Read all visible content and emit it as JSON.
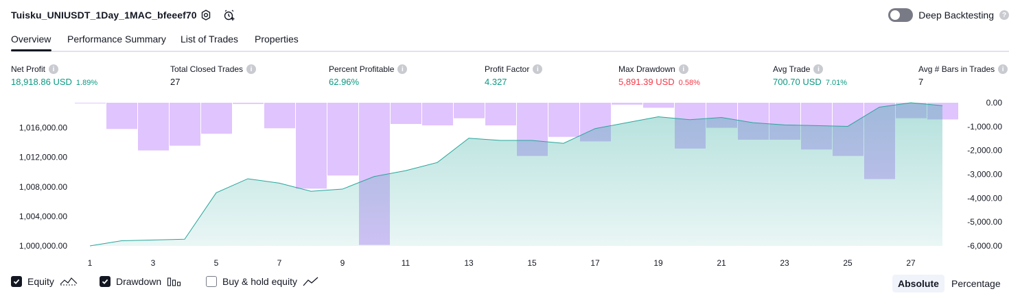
{
  "header": {
    "title": "Tuisku_UNIUSDT_1Day_1MAC_bfeeef70",
    "deep_backtesting_label": "Deep Backtesting",
    "deep_backtesting_enabled": false
  },
  "tabs": [
    {
      "label": "Overview",
      "active": true
    },
    {
      "label": "Performance Summary",
      "active": false
    },
    {
      "label": "List of Trades",
      "active": false
    },
    {
      "label": "Properties",
      "active": false
    }
  ],
  "stats": [
    {
      "label": "Net Profit",
      "value": "18,918.86 USD",
      "pct": "1.89%",
      "color": "#089981"
    },
    {
      "label": "Total Closed Trades",
      "value": "27",
      "pct": "",
      "color": "#131722"
    },
    {
      "label": "Percent Profitable",
      "value": "62.96%",
      "pct": "",
      "color": "#089981"
    },
    {
      "label": "Profit Factor",
      "value": "4.327",
      "pct": "",
      "color": "#089981"
    },
    {
      "label": "Max Drawdown",
      "value": "5,891.39 USD",
      "pct": "0.58%",
      "color": "#f23645"
    },
    {
      "label": "Avg Trade",
      "value": "700.70 USD",
      "pct": "7.01%",
      "color": "#089981"
    },
    {
      "label": "Avg # Bars in Trades",
      "value": "7",
      "pct": "",
      "color": "#131722"
    }
  ],
  "chart_data": {
    "type": "area",
    "x": [
      1,
      2,
      3,
      4,
      5,
      6,
      7,
      8,
      9,
      10,
      11,
      12,
      13,
      14,
      15,
      16,
      17,
      18,
      19,
      20,
      21,
      22,
      23,
      24,
      25,
      26,
      27,
      28
    ],
    "x_tick_labels": [
      "1",
      "3",
      "5",
      "7",
      "9",
      "11",
      "13",
      "15",
      "17",
      "19",
      "21",
      "23",
      "25",
      "27"
    ],
    "series": [
      {
        "axis": "left",
        "style": "area-line",
        "color": "#26a69a",
        "values": [
          1000000,
          1000700,
          1000800,
          1000900,
          1007200,
          1009100,
          1008500,
          1007400,
          1007700,
          1009400,
          1010200,
          1011300,
          1014600,
          1014300,
          1014300,
          1013900,
          1015900,
          1016700,
          1017500,
          1017100,
          1017400,
          1016700,
          1016400,
          1016300,
          1016200,
          1018800,
          1019400,
          1019000
        ]
      },
      {
        "axis": "right",
        "style": "bar-from-top",
        "color": "#e0c4fd",
        "values": [
          -10,
          -1100,
          -2000,
          -1800,
          -1300,
          -50,
          -1070,
          -3600,
          -3050,
          -5960,
          -890,
          -950,
          -650,
          -950,
          -2230,
          -1430,
          -1620,
          -80,
          -210,
          -1920,
          -1050,
          -1550,
          -1550,
          -1960,
          -2230,
          -3200,
          -650,
          -700
        ]
      }
    ],
    "y_left": {
      "ticks": [
        "1,000,000.00",
        "1,004,000.00",
        "1,008,000.00",
        "1,012,000.00",
        "1,016,000.00"
      ],
      "values": [
        1000000,
        1004000,
        1008000,
        1012000,
        1016000
      ],
      "range": [
        1000000,
        1019400
      ]
    },
    "y_right": {
      "ticks": [
        "0.00",
        "-1,000.00",
        "-2,000.00",
        "-3,000.00",
        "-4,000.00",
        "-5,000.00",
        "-6,000.00"
      ],
      "values": [
        0,
        -1000,
        -2000,
        -3000,
        -4000,
        -5000,
        -6000
      ],
      "range": [
        0,
        -6000
      ]
    },
    "grid": false
  },
  "legend": [
    {
      "label": "Equity",
      "checked": true
    },
    {
      "label": "Drawdown",
      "checked": true
    },
    {
      "label": "Buy & hold equity",
      "checked": false
    }
  ],
  "view_mode": {
    "options": [
      "Absolute",
      "Percentage"
    ],
    "selected": "Absolute"
  }
}
